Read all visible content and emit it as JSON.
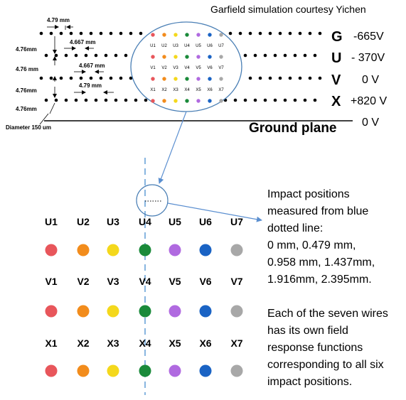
{
  "credit": "Garfield simulation courtesy Yichen",
  "dims": {
    "pitch_top": "4.79 mm",
    "pitch_g": "4.667 mm",
    "pitch_v": "4.667 mm",
    "pitch_x": "4.79 mm",
    "gap_1": "4.76mm",
    "gap_2": "4.76 mm",
    "gap_3": "4.76mm",
    "gap_4": "4.76mm",
    "diameter": "Diameter 150 um"
  },
  "planes": [
    {
      "letter": "G",
      "voltage": "-665V"
    },
    {
      "letter": "U",
      "voltage": "- 370V"
    },
    {
      "letter": "V",
      "voltage": "0 V"
    },
    {
      "letter": "X",
      "voltage": "+820 V"
    }
  ],
  "ground": {
    "label": "Ground plane",
    "voltage": "0 V"
  },
  "wire_colors": [
    "#e8565b",
    "#f28c1c",
    "#f4d81c",
    "#1a8a3a",
    "#b06ae0",
    "#1a63c4",
    "#a8a8a8"
  ],
  "wire_labels": {
    "u": [
      "U1",
      "U2",
      "U3",
      "U4",
      "U5",
      "U6",
      "U7"
    ],
    "v": [
      "V1",
      "V2",
      "V3",
      "V4",
      "V5",
      "V6",
      "V7"
    ],
    "x": [
      "X1",
      "X2",
      "X3",
      "X4",
      "X5",
      "X6",
      "X7"
    ]
  },
  "note1_lines": [
    "Impact positions",
    "measured from blue",
    "dotted line:",
    "0 mm, 0.479 mm,",
    "0.958 mm, 1.437mm,",
    "1.916mm, 2.395mm."
  ],
  "note2_lines": [
    "Each of the seven wires",
    "has its own field",
    "response functions",
    "corresponding to all six",
    "impact positions."
  ]
}
